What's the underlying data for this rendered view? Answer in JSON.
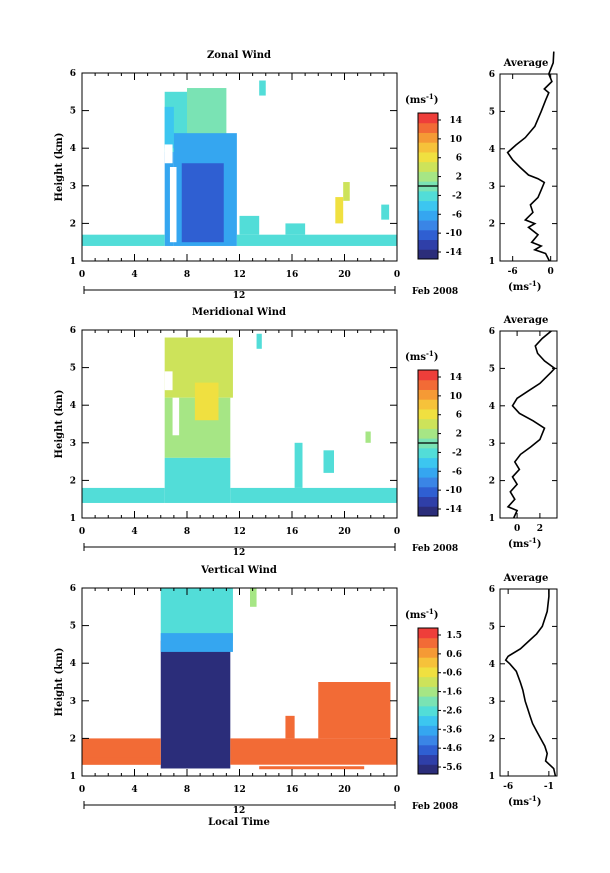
{
  "colorbar_colors": [
    "#2b2d7a",
    "#2f3fa8",
    "#2f5fd2",
    "#3a85e6",
    "#35a6f0",
    "#3cc6f0",
    "#52ddd8",
    "#7ae3b4",
    "#a6e685",
    "#cde35a",
    "#f0e040",
    "#f6c23a",
    "#f59a35",
    "#f26b36",
    "#ee3e3a"
  ],
  "axis_colors": {
    "line": "#000000",
    "time_bar": "#000000"
  },
  "panels": [
    {
      "title": "Zonal Wind",
      "ylabel": "Height (km)",
      "unit": "(ms",
      "unit_exp": "-1",
      "unit_close": ")",
      "yticks": [
        "1",
        "2",
        "3",
        "4",
        "5",
        "6"
      ],
      "xticks": [
        "0",
        "4",
        "8",
        "12",
        "16",
        "20",
        "0"
      ],
      "colorbar_labels": [
        "14",
        "10",
        "6",
        "2",
        "-2",
        "-6",
        "-10",
        "-14"
      ],
      "date_center": "12",
      "date_label": "Feb 2008",
      "avg_title": "Average",
      "avg_xticks": [
        "-6",
        "0"
      ],
      "avg_yticks": [
        "1",
        "2",
        "3",
        "4",
        "5",
        "6"
      ],
      "avg_unit": "(ms",
      "avg_unit_exp": "-1",
      "avg_unit_close": ")"
    },
    {
      "title": "Meridional Wind",
      "ylabel": "Height (km)",
      "unit": "(ms",
      "unit_exp": "-1",
      "unit_close": ")",
      "yticks": [
        "1",
        "2",
        "3",
        "4",
        "5",
        "6"
      ],
      "xticks": [
        "0",
        "4",
        "8",
        "12",
        "16",
        "20",
        "0"
      ],
      "colorbar_labels": [
        "14",
        "10",
        "6",
        "2",
        "-2",
        "-6",
        "-10",
        "-14"
      ],
      "date_center": "12",
      "date_label": "Feb 2008",
      "avg_title": "Average",
      "avg_xticks": [
        "0",
        "2"
      ],
      "avg_yticks": [
        "1",
        "2",
        "3",
        "4",
        "5",
        "6"
      ],
      "avg_unit": "(ms",
      "avg_unit_exp": "-1",
      "avg_unit_close": ")"
    },
    {
      "title": "Vertical Wind",
      "ylabel": "Height (km)",
      "unit": "(ms",
      "unit_exp": "-1",
      "unit_close": ")",
      "yticks": [
        "1",
        "2",
        "3",
        "4",
        "5",
        "6"
      ],
      "xticks": [
        "0",
        "4",
        "8",
        "12",
        "16",
        "20",
        "0"
      ],
      "colorbar_labels": [
        "1.5",
        "0.6",
        "-0.6",
        "-1.6",
        "-2.6",
        "-3.6",
        "-4.6",
        "-5.6"
      ],
      "date_center": "12",
      "date_label": "Feb 2008",
      "avg_title": "Average",
      "avg_xticks": [
        "-6",
        "-1"
      ],
      "avg_yticks": [
        "1",
        "2",
        "3",
        "4",
        "5",
        "6"
      ],
      "avg_unit": "(ms",
      "avg_unit_exp": "-1",
      "avg_unit_close": ")",
      "xlabel": "Local Time"
    }
  ],
  "chart_data": [
    {
      "type": "heatmap",
      "title": "Zonal Wind",
      "ylabel": "Height (km)",
      "x_range": [
        0,
        24
      ],
      "y_range": [
        1,
        6
      ],
      "color_range": [
        -14,
        14
      ],
      "colorbar_ticks": [
        14,
        10,
        6,
        2,
        -2,
        -6,
        -10,
        -14
      ],
      "cells": [
        {
          "x": [
            6.3,
            8.0
          ],
          "y": [
            3.9,
            5.5
          ],
          "value": -1
        },
        {
          "x": [
            8.0,
            11.0
          ],
          "y": [
            4.2,
            5.6
          ],
          "value": 0
        },
        {
          "x": [
            6.3,
            7.0
          ],
          "y": [
            4.0,
            5.1
          ],
          "value": -4
        },
        {
          "x": [
            7.0,
            11.8
          ],
          "y": [
            1.4,
            4.4
          ],
          "value": -5
        },
        {
          "x": [
            6.3,
            7.0
          ],
          "y": [
            1.4,
            3.9
          ],
          "value": -6
        },
        {
          "x": [
            7.6,
            10.8
          ],
          "y": [
            1.5,
            3.6
          ],
          "value": -9
        },
        {
          "x": [
            0.0,
            6.3
          ],
          "y": [
            1.4,
            1.7
          ],
          "value": -1
        },
        {
          "x": [
            11.8,
            24.0
          ],
          "y": [
            1.4,
            1.7
          ],
          "value": -1
        },
        {
          "x": [
            12.0,
            13.5
          ],
          "y": [
            1.7,
            2.2
          ],
          "value": -1
        },
        {
          "x": [
            15.5,
            17.0
          ],
          "y": [
            1.7,
            2.0
          ],
          "value": -1
        },
        {
          "x": [
            19.3,
            19.9
          ],
          "y": [
            2.0,
            2.7
          ],
          "value": 5
        },
        {
          "x": [
            19.9,
            20.4
          ],
          "y": [
            2.6,
            3.1
          ],
          "value": 3
        },
        {
          "x": [
            13.5,
            14.0
          ],
          "y": [
            5.4,
            5.8
          ],
          "value": -1
        },
        {
          "x": [
            22.8,
            23.4
          ],
          "y": [
            2.1,
            2.5
          ],
          "value": -1
        }
      ],
      "gaps": [
        {
          "x": [
            6.7,
            7.2
          ],
          "y": [
            1.5,
            3.5
          ]
        },
        {
          "x": [
            6.3,
            6.9
          ],
          "y": [
            3.6,
            4.1
          ]
        }
      ],
      "average_profile": {
        "x_ticks": [
          -6,
          0
        ],
        "x_range": [
          -8,
          1
        ],
        "points": [
          [
            -0.2,
            1.0
          ],
          [
            -0.8,
            1.2
          ],
          [
            -2.5,
            1.3
          ],
          [
            -1.5,
            1.4
          ],
          [
            -3.0,
            1.5
          ],
          [
            -2.0,
            1.7
          ],
          [
            -3.5,
            1.9
          ],
          [
            -2.5,
            2.0
          ],
          [
            -4.0,
            2.1
          ],
          [
            -2.8,
            2.3
          ],
          [
            -3.2,
            2.5
          ],
          [
            -2.0,
            2.7
          ],
          [
            -1.5,
            2.9
          ],
          [
            -1.0,
            3.1
          ],
          [
            -2.0,
            3.2
          ],
          [
            -3.5,
            3.3
          ],
          [
            -4.8,
            3.5
          ],
          [
            -6.0,
            3.7
          ],
          [
            -6.8,
            3.9
          ],
          [
            -5.5,
            4.1
          ],
          [
            -4.0,
            4.3
          ],
          [
            -2.5,
            4.6
          ],
          [
            -1.5,
            5.0
          ],
          [
            -0.8,
            5.3
          ],
          [
            -0.3,
            5.5
          ],
          [
            -1.0,
            5.6
          ],
          [
            0.2,
            5.8
          ],
          [
            -0.3,
            6.0
          ],
          [
            0.4,
            6.3
          ],
          [
            0.5,
            6.6
          ]
        ]
      }
    },
    {
      "type": "heatmap",
      "title": "Meridional Wind",
      "ylabel": "Height (km)",
      "x_range": [
        0,
        24
      ],
      "y_range": [
        1,
        6
      ],
      "color_range": [
        -14,
        14
      ],
      "colorbar_ticks": [
        14,
        10,
        6,
        2,
        -2,
        -6,
        -10,
        -14
      ],
      "cells": [
        {
          "x": [
            6.3,
            11.5
          ],
          "y": [
            4.2,
            5.8
          ],
          "value": 3
        },
        {
          "x": [
            6.3,
            11.3
          ],
          "y": [
            2.6,
            4.2
          ],
          "value": 2
        },
        {
          "x": [
            6.3,
            11.3
          ],
          "y": [
            1.4,
            2.6
          ],
          "value": -1
        },
        {
          "x": [
            8.6,
            10.4
          ],
          "y": [
            3.6,
            4.6
          ],
          "value": 6
        },
        {
          "x": [
            0.0,
            6.3
          ],
          "y": [
            1.4,
            1.8
          ],
          "value": -2
        },
        {
          "x": [
            11.3,
            24.0
          ],
          "y": [
            1.4,
            1.8
          ],
          "value": -1
        },
        {
          "x": [
            16.2,
            16.8
          ],
          "y": [
            1.8,
            3.0
          ],
          "value": -1
        },
        {
          "x": [
            18.4,
            19.2
          ],
          "y": [
            2.2,
            2.8
          ],
          "value": -1
        },
        {
          "x": [
            13.3,
            13.7
          ],
          "y": [
            5.5,
            5.9
          ],
          "value": -1
        },
        {
          "x": [
            21.6,
            22.0
          ],
          "y": [
            3.0,
            3.3
          ],
          "value": 2
        }
      ],
      "gaps": [
        {
          "x": [
            6.9,
            7.4
          ],
          "y": [
            3.2,
            4.2
          ]
        },
        {
          "x": [
            6.3,
            6.9
          ],
          "y": [
            4.4,
            4.9
          ]
        }
      ],
      "average_profile": {
        "x_ticks": [
          0,
          2
        ],
        "x_range": [
          -1.5,
          3.5
        ],
        "points": [
          [
            -0.3,
            1.0
          ],
          [
            0.0,
            1.2
          ],
          [
            -0.8,
            1.3
          ],
          [
            -0.2,
            1.5
          ],
          [
            -0.6,
            1.7
          ],
          [
            0.0,
            1.9
          ],
          [
            -0.4,
            2.1
          ],
          [
            0.2,
            2.3
          ],
          [
            -0.2,
            2.5
          ],
          [
            0.3,
            2.7
          ],
          [
            1.2,
            2.9
          ],
          [
            2.0,
            3.1
          ],
          [
            2.4,
            3.4
          ],
          [
            1.4,
            3.6
          ],
          [
            0.2,
            3.8
          ],
          [
            -0.4,
            4.0
          ],
          [
            0.0,
            4.2
          ],
          [
            1.0,
            4.4
          ],
          [
            2.0,
            4.6
          ],
          [
            3.0,
            4.9
          ],
          [
            3.3,
            5.0
          ],
          [
            2.4,
            5.2
          ],
          [
            1.8,
            5.4
          ],
          [
            1.6,
            5.6
          ],
          [
            2.2,
            5.8
          ],
          [
            3.0,
            6.0
          ]
        ]
      }
    },
    {
      "type": "heatmap",
      "title": "Vertical Wind",
      "ylabel": "Height (km)",
      "xlabel": "Local Time",
      "x_range": [
        0,
        24
      ],
      "y_range": [
        1,
        6
      ],
      "color_range": [
        -5.6,
        1.5
      ],
      "colorbar_ticks": [
        1.5,
        0.6,
        -0.6,
        -1.6,
        -2.6,
        -3.6,
        -4.6,
        -5.6
      ],
      "cells": [
        {
          "x": [
            6.0,
            11.3
          ],
          "y": [
            1.2,
            4.6
          ],
          "value": -5.6
        },
        {
          "x": [
            6.0,
            11.5
          ],
          "y": [
            4.6,
            6.0
          ],
          "value": -2.4
        },
        {
          "x": [
            6.0,
            11.5
          ],
          "y": [
            4.3,
            4.8
          ],
          "value": -3.6
        },
        {
          "x": [
            0.0,
            6.0
          ],
          "y": [
            1.3,
            2.0
          ],
          "value": 0.6
        },
        {
          "x": [
            11.3,
            24.0
          ],
          "y": [
            1.3,
            2.0
          ],
          "value": 0.6
        },
        {
          "x": [
            15.5,
            16.2
          ],
          "y": [
            2.0,
            2.6
          ],
          "value": 0.6
        },
        {
          "x": [
            18.0,
            23.5
          ],
          "y": [
            2.0,
            3.5
          ],
          "value": 0.6
        },
        {
          "x": [
            12.8,
            13.3
          ],
          "y": [
            5.5,
            6.0
          ],
          "value": -1.6
        },
        {
          "x": [
            0.0,
            6.0
          ],
          "y": [
            1.3,
            1.5
          ],
          "value": 0.9
        },
        {
          "x": [
            13.5,
            21.5
          ],
          "y": [
            1.18,
            1.26
          ],
          "value": 0.9
        }
      ],
      "gaps": [],
      "average_profile": {
        "x_ticks": [
          -6,
          -1
        ],
        "x_range": [
          -7,
          0
        ],
        "points": [
          [
            -0.2,
            1.0
          ],
          [
            -0.4,
            1.2
          ],
          [
            -1.4,
            1.4
          ],
          [
            -1.2,
            1.6
          ],
          [
            -1.5,
            1.8
          ],
          [
            -2.0,
            2.0
          ],
          [
            -2.5,
            2.2
          ],
          [
            -3.0,
            2.4
          ],
          [
            -3.3,
            2.6
          ],
          [
            -3.6,
            2.8
          ],
          [
            -3.9,
            3.0
          ],
          [
            -4.2,
            3.3
          ],
          [
            -4.5,
            3.5
          ],
          [
            -5.0,
            3.8
          ],
          [
            -5.8,
            4.0
          ],
          [
            -6.3,
            4.1
          ],
          [
            -6.0,
            4.2
          ],
          [
            -4.5,
            4.4
          ],
          [
            -3.5,
            4.6
          ],
          [
            -2.5,
            4.8
          ],
          [
            -1.8,
            5.0
          ],
          [
            -1.2,
            5.4
          ],
          [
            -1.0,
            5.8
          ],
          [
            -1.0,
            6.0
          ]
        ]
      }
    }
  ]
}
